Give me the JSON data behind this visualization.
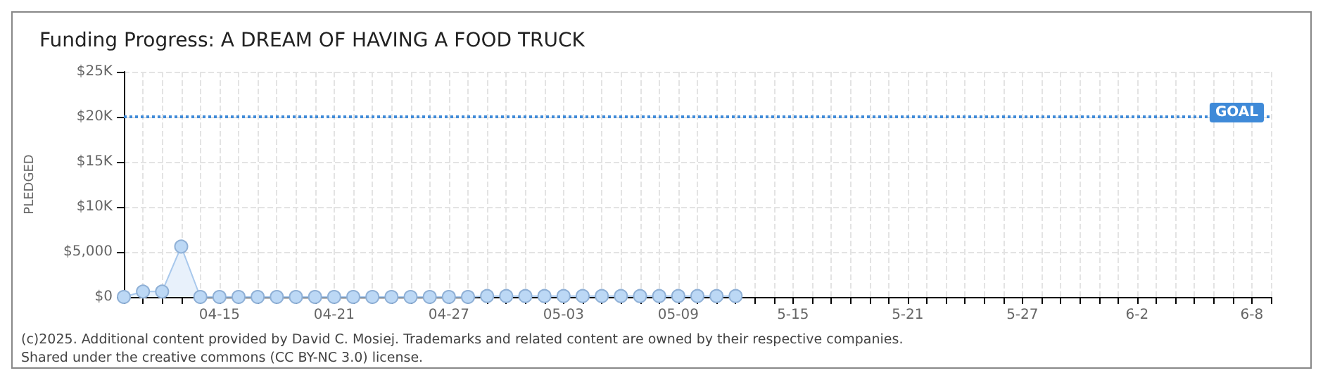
{
  "chart_data": {
    "type": "area",
    "title": "Funding Progress: A DREAM OF HAVING A FOOD TRUCK",
    "ylabel": "PLEDGED",
    "x": [
      "--04-10",
      "--04-11",
      "--04-12",
      "--04-13",
      "--04-14",
      "--04-15",
      "--04-16",
      "--04-17",
      "--04-18",
      "--04-19",
      "--04-20",
      "--04-21",
      "--04-22",
      "--04-23",
      "--04-24",
      "--04-25",
      "--04-26",
      "--04-27",
      "--04-28",
      "--04-29",
      "--04-30",
      "--05-01",
      "--05-02",
      "--05-03",
      "--05-04",
      "--05-05",
      "--05-06",
      "--05-07",
      "--05-08",
      "--05-09",
      "--05-10",
      "--05-11",
      "--05-12"
    ],
    "series": [
      {
        "color": "#bcd8f5",
        "values": [
          0,
          600,
          600,
          5600,
          0,
          0,
          0,
          0,
          0,
          0,
          0,
          0,
          0,
          0,
          0,
          0,
          0,
          0,
          0,
          100,
          100,
          100,
          100,
          100,
          100,
          100,
          100,
          100,
          100,
          100,
          100,
          100,
          100
        ]
      }
    ],
    "xlim": [
      "--04-10",
      "--06-09"
    ],
    "xticks": [
      {
        "value": "--04-10",
        "label": null
      },
      {
        "value": "--04-11",
        "label": null
      },
      {
        "value": "--04-12",
        "label": null
      },
      {
        "value": "--04-13",
        "label": null
      },
      {
        "value": "--04-14",
        "label": null
      },
      {
        "value": "--04-15",
        "label": "04-15"
      },
      {
        "value": "--04-16",
        "label": null
      },
      {
        "value": "--04-17",
        "label": null
      },
      {
        "value": "--04-18",
        "label": null
      },
      {
        "value": "--04-19",
        "label": null
      },
      {
        "value": "--04-20",
        "label": null
      },
      {
        "value": "--04-21",
        "label": "04-21"
      },
      {
        "value": "--04-22",
        "label": null
      },
      {
        "value": "--04-23",
        "label": null
      },
      {
        "value": "--04-24",
        "label": null
      },
      {
        "value": "--04-25",
        "label": null
      },
      {
        "value": "--04-26",
        "label": null
      },
      {
        "value": "--04-27",
        "label": "04-27"
      },
      {
        "value": "--04-28",
        "label": null
      },
      {
        "value": "--04-29",
        "label": null
      },
      {
        "value": "--04-30",
        "label": null
      },
      {
        "value": "--05-01",
        "label": null
      },
      {
        "value": "--05-02",
        "label": null
      },
      {
        "value": "--05-03",
        "label": "05-03"
      },
      {
        "value": "--05-04",
        "label": null
      },
      {
        "value": "--05-05",
        "label": null
      },
      {
        "value": "--05-06",
        "label": null
      },
      {
        "value": "--05-07",
        "label": null
      },
      {
        "value": "--05-08",
        "label": null
      },
      {
        "value": "--05-09",
        "label": "05-09"
      },
      {
        "value": "--05-10",
        "label": null
      },
      {
        "value": "--05-11",
        "label": null
      },
      {
        "value": "--05-12",
        "label": null
      },
      {
        "value": "--05-13",
        "label": null
      },
      {
        "value": "--05-14",
        "label": null
      },
      {
        "value": "--05-15",
        "label": "5-15"
      },
      {
        "value": "--05-16",
        "label": null
      },
      {
        "value": "--05-17",
        "label": null
      },
      {
        "value": "--05-18",
        "label": null
      },
      {
        "value": "--05-19",
        "label": null
      },
      {
        "value": "--05-20",
        "label": null
      },
      {
        "value": "--05-21",
        "label": "5-21"
      },
      {
        "value": "--05-22",
        "label": null
      },
      {
        "value": "--05-23",
        "label": null
      },
      {
        "value": "--05-24",
        "label": null
      },
      {
        "value": "--05-25",
        "label": null
      },
      {
        "value": "--05-26",
        "label": null
      },
      {
        "value": "--05-27",
        "label": "5-27"
      },
      {
        "value": "--05-28",
        "label": null
      },
      {
        "value": "--05-29",
        "label": null
      },
      {
        "value": "--05-30",
        "label": null
      },
      {
        "value": "--05-31",
        "label": null
      },
      {
        "value": "--06-01",
        "label": null
      },
      {
        "value": "--06-02",
        "label": "6-2"
      },
      {
        "value": "--06-03",
        "label": null
      },
      {
        "value": "--06-04",
        "label": null
      },
      {
        "value": "--06-05",
        "label": null
      },
      {
        "value": "--06-06",
        "label": null
      },
      {
        "value": "--06-07",
        "label": null
      },
      {
        "value": "--06-08",
        "label": "6-8"
      },
      {
        "value": "--06-09",
        "label": null
      }
    ],
    "ylim": [
      0,
      25000
    ],
    "yticks": [
      {
        "value": 0,
        "label": "$0"
      },
      {
        "value": 5000,
        "label": "$5,000"
      },
      {
        "value": 10000,
        "label": "$10K"
      },
      {
        "value": 15000,
        "label": "$15K"
      },
      {
        "value": 20000,
        "label": "$20K"
      },
      {
        "value": 25000,
        "label": "$25K"
      }
    ],
    "ref_lines": [
      {
        "axis": "y",
        "value": 20000,
        "label": "GOAL",
        "color": "#3f8ad8",
        "line_style": "dotted"
      }
    ],
    "grid": true,
    "marker": "circle",
    "annotations": [
      "(c)2025. Additional content provided by David C. Mosiej. Trademarks and related content are owned by their respective companies.",
      "Shared under the creative commons (CC BY-NC 3.0) license."
    ]
  }
}
